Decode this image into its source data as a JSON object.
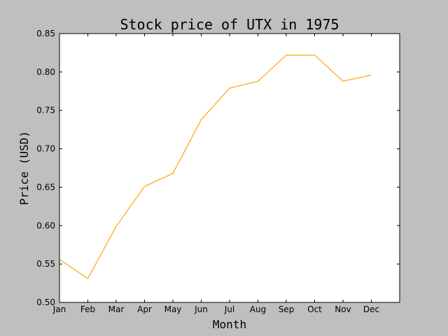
{
  "chart_data": {
    "type": "line",
    "title": "Stock price of UTX in 1975",
    "xlabel": "Month",
    "ylabel": "Price (USD)",
    "categories": [
      "Jan",
      "Feb",
      "Mar",
      "Apr",
      "May",
      "Jun",
      "Jul",
      "Aug",
      "Sep",
      "Oct",
      "Nov",
      "Dec"
    ],
    "series": [
      {
        "color": "#ffa500",
        "values": [
          0.556,
          0.531,
          0.599,
          0.651,
          0.668,
          0.738,
          0.779,
          0.788,
          0.822,
          0.822,
          0.788,
          0.796
        ]
      }
    ],
    "ylim": [
      0.5,
      0.85
    ],
    "yticks": [
      "0.50",
      "0.55",
      "0.60",
      "0.65",
      "0.70",
      "0.75",
      "0.80",
      "0.85"
    ],
    "grid": false,
    "legend": "none"
  }
}
